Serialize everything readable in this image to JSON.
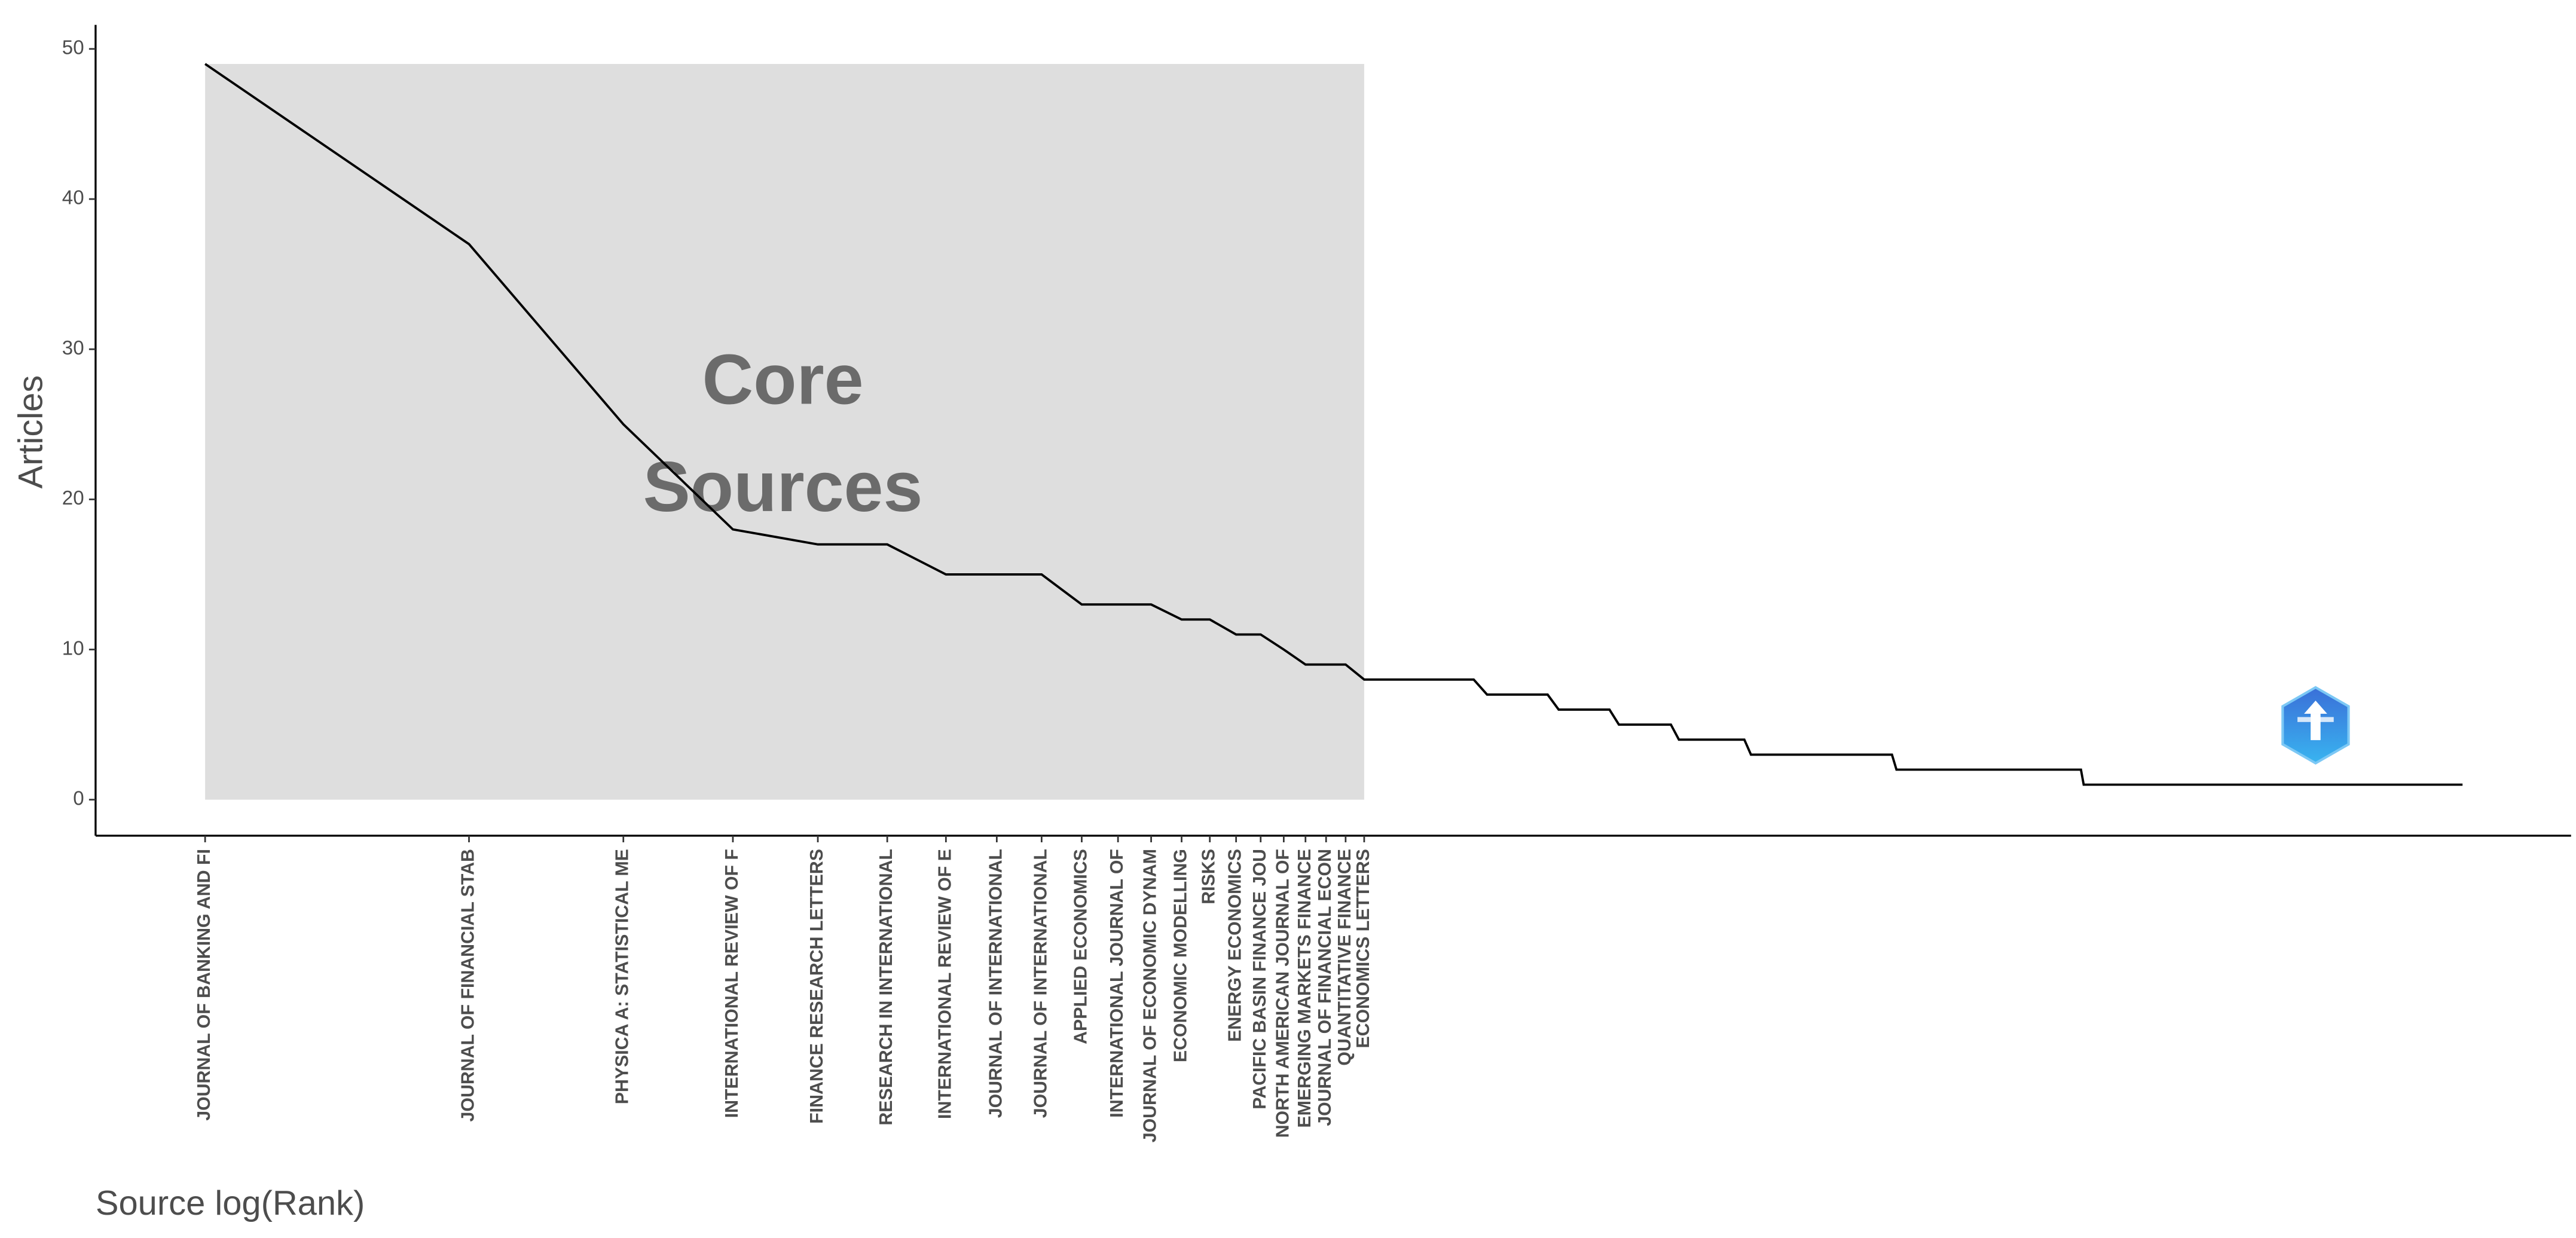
{
  "chart_data": {
    "type": "line",
    "x_label": "Source log(Rank)",
    "y_label": "Articles",
    "annotation": [
      "Core",
      "Sources"
    ],
    "x": [
      1,
      2,
      3,
      4,
      5,
      6,
      7,
      8,
      9,
      10,
      11,
      12,
      13,
      14,
      15,
      16,
      17,
      18,
      19,
      20,
      21,
      28,
      29,
      34,
      35,
      40,
      41,
      47,
      48,
      57,
      58,
      84,
      85,
      138,
      139,
      376
    ],
    "values": [
      49,
      37,
      25,
      18,
      17,
      17,
      15,
      15,
      15,
      13,
      13,
      13,
      12,
      12,
      11,
      11,
      10,
      9,
      9,
      9,
      8,
      8,
      7,
      7,
      6,
      6,
      5,
      5,
      4,
      4,
      3,
      3,
      2,
      2,
      1,
      1
    ],
    "color": "#000000",
    "core_color": "#dedede",
    "x_log": true,
    "xlim": [
      0.75,
      500
    ],
    "ylim": [
      -2.4,
      51.6
    ],
    "yticks": [
      0,
      10,
      20,
      30,
      40,
      50
    ],
    "xticks": [
      {
        "value": 1,
        "label": "JOURNAL OF BANKING AND FI"
      },
      {
        "value": 2,
        "label": "JOURNAL OF FINANCIAL STAB"
      },
      {
        "value": 3,
        "label": "PHYSICA A: STATISTICAL ME"
      },
      {
        "value": 4,
        "label": "INTERNATIONAL REVIEW OF F"
      },
      {
        "value": 5,
        "label": "FINANCE RESEARCH LETTERS"
      },
      {
        "value": 6,
        "label": "RESEARCH IN INTERNATIONAL"
      },
      {
        "value": 7,
        "label": "INTERNATIONAL REVIEW OF E"
      },
      {
        "value": 8,
        "label": "JOURNAL OF INTERNATIONAL"
      },
      {
        "value": 9,
        "label": "JOURNAL OF INTERNATIONAL"
      },
      {
        "value": 10,
        "label": "APPLIED ECONOMICS"
      },
      {
        "value": 11,
        "label": "INTERNATIONAL JOURNAL OF"
      },
      {
        "value": 12,
        "label": "JOURNAL OF ECONOMIC DYNAM"
      },
      {
        "value": 13,
        "label": "ECONOMIC MODELLING"
      },
      {
        "value": 14,
        "label": "RISKS"
      },
      {
        "value": 15,
        "label": "ENERGY ECONOMICS"
      },
      {
        "value": 16,
        "label": "PACIFIC BASIN FINANCE JOU"
      },
      {
        "value": 17,
        "label": "NORTH AMERICAN JOURNAL OF"
      },
      {
        "value": 18,
        "label": "EMERGING MARKETS FINANCE"
      },
      {
        "value": 19,
        "label": "JOURNAL OF FINANCIAL ECON"
      },
      {
        "value": 20,
        "label": "QUANTITATIVE FINANCE"
      },
      {
        "value": 21,
        "label": "ECONOMICS LETTERS"
      }
    ]
  }
}
